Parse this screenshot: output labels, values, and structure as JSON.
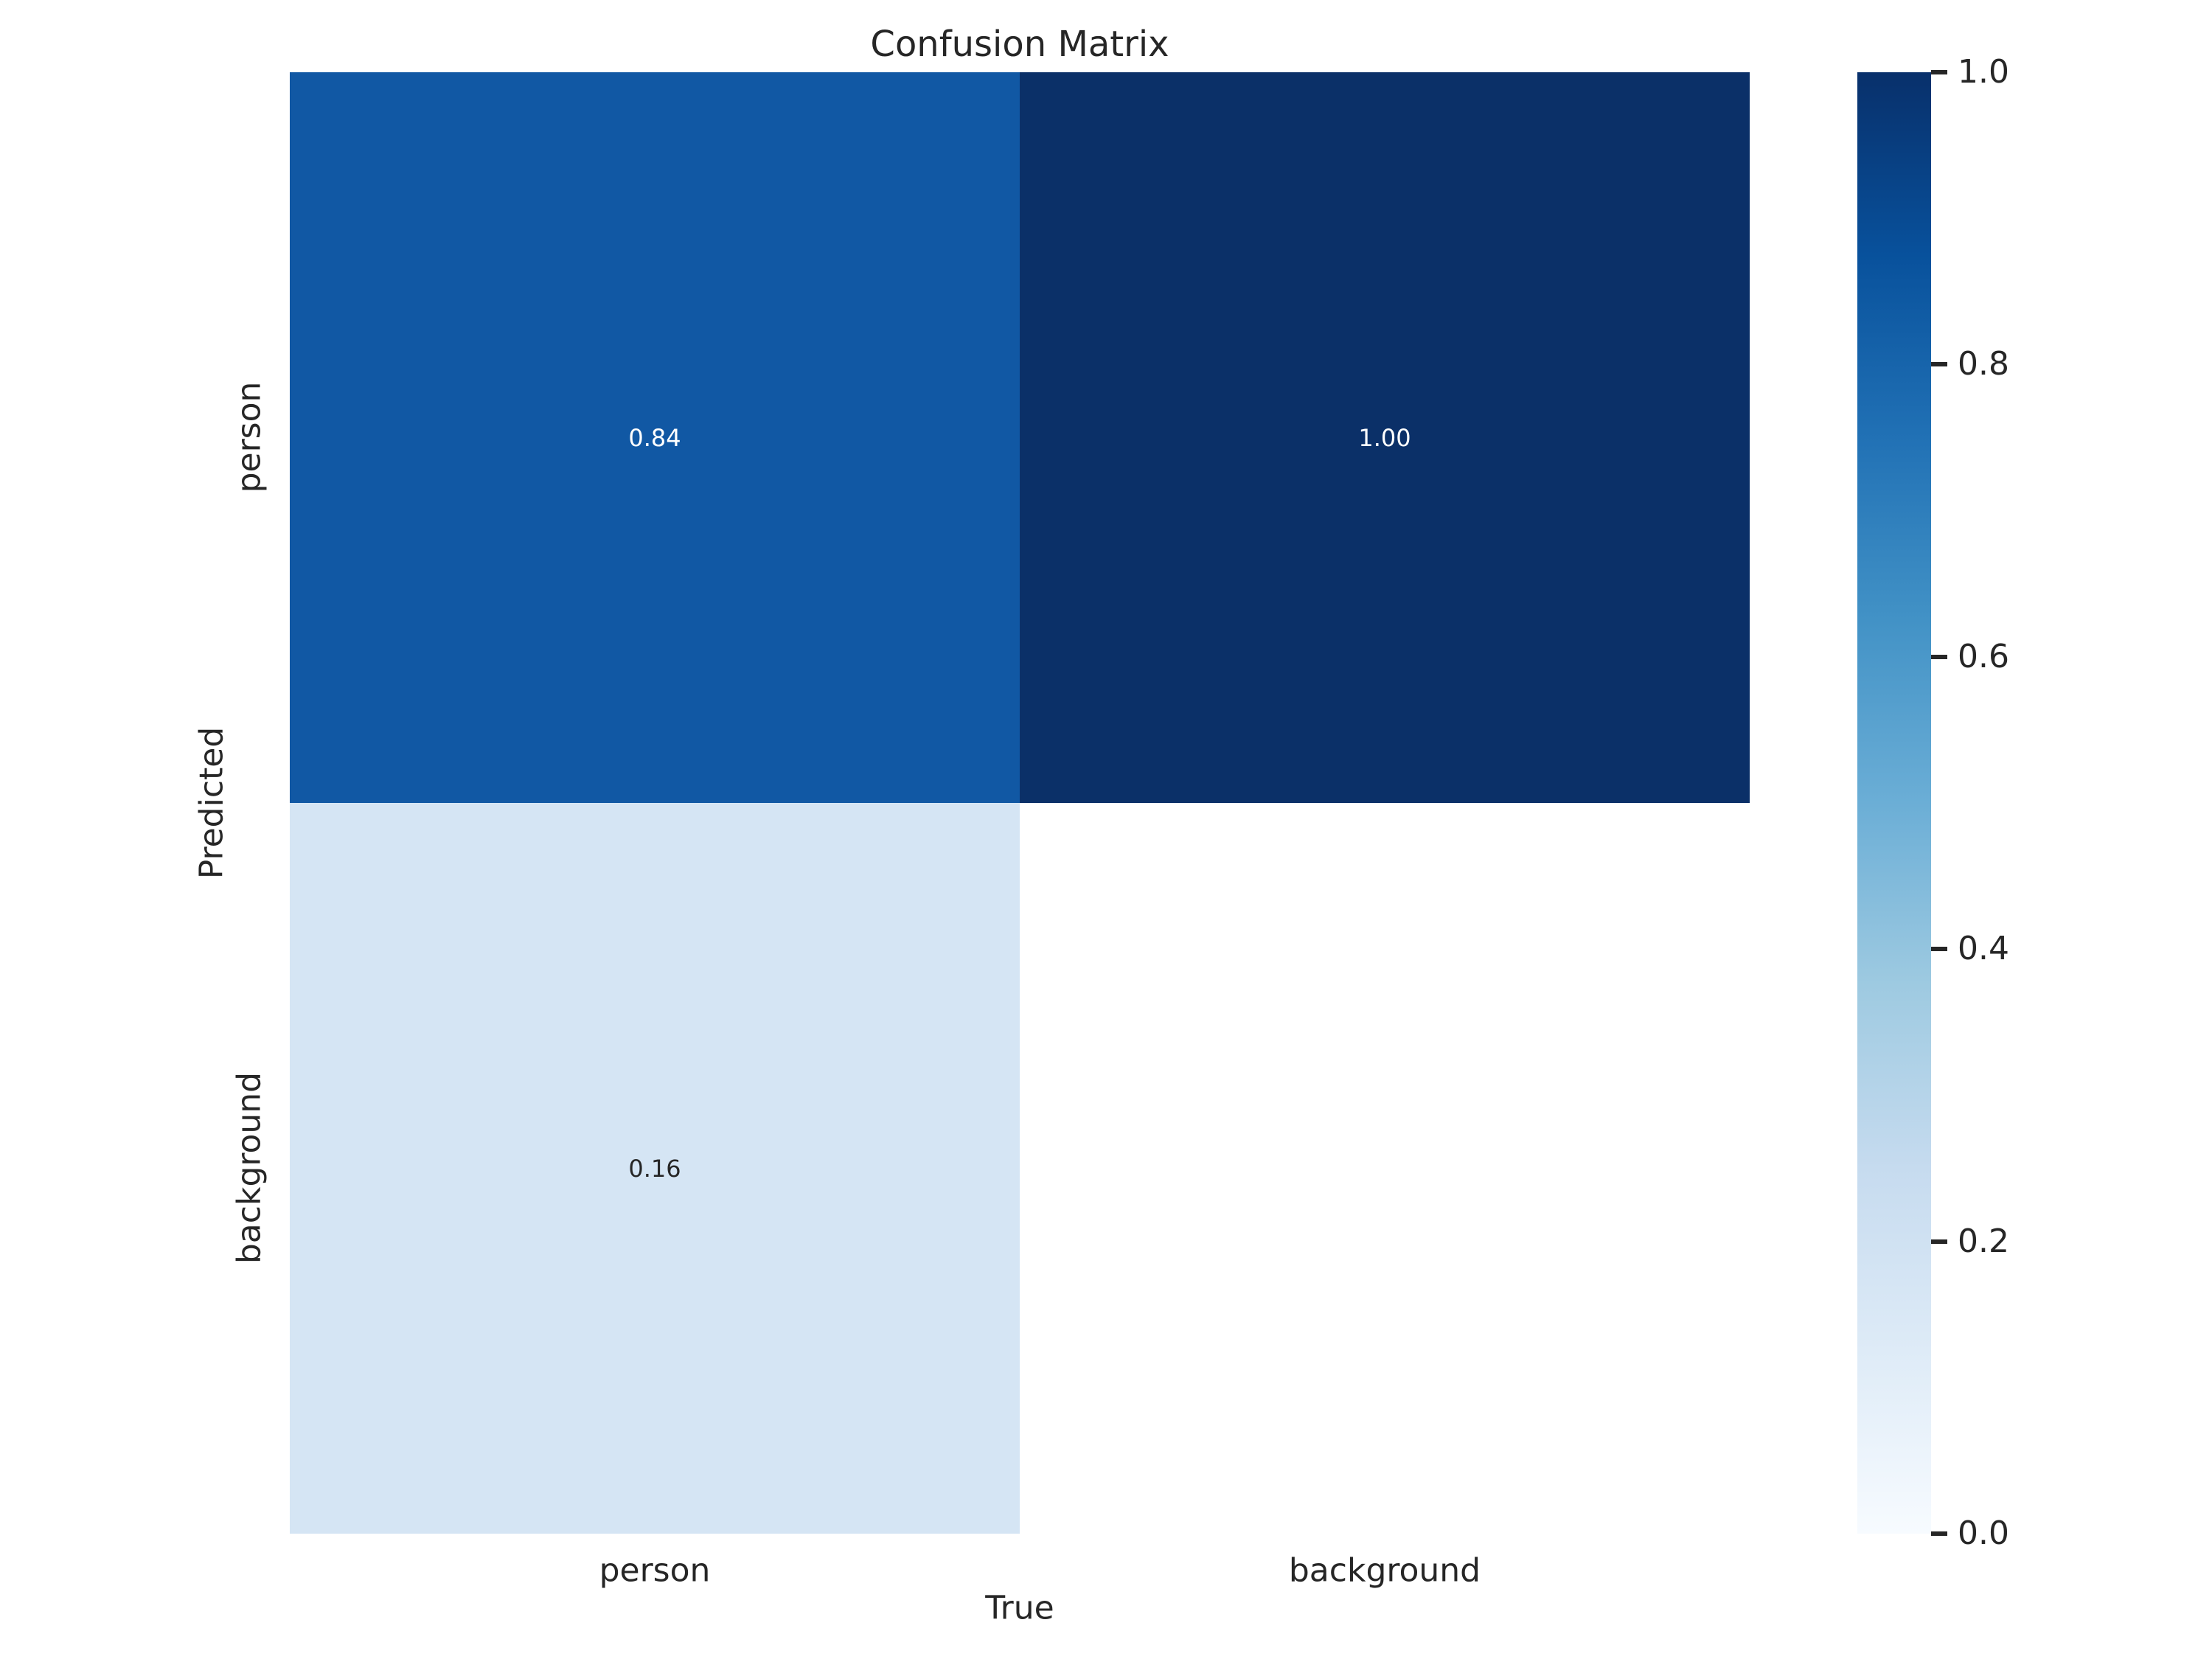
{
  "title": "Confusion Matrix",
  "axes": {
    "x_label": "True",
    "y_label": "Predicted",
    "x_tick_labels": [
      "person",
      "background"
    ],
    "y_tick_labels": [
      "person",
      "background"
    ]
  },
  "cells": [
    {
      "row": "person",
      "col": "person",
      "value": 0.84,
      "label": "0.84",
      "bg": "#1158a4",
      "fg": "#ffffff"
    },
    {
      "row": "person",
      "col": "background",
      "value": 1.0,
      "label": "1.00",
      "bg": "#0b3068",
      "fg": "#ffffff"
    },
    {
      "row": "background",
      "col": "person",
      "value": 0.16,
      "label": "0.16",
      "bg": "#d5e5f4",
      "fg": "#262626"
    },
    {
      "row": "background",
      "col": "background",
      "value": null,
      "label": "",
      "bg": "#ffffff",
      "fg": "#262626"
    }
  ],
  "colorbar": {
    "tick_labels": [
      "1.0",
      "0.8",
      "0.6",
      "0.4",
      "0.2",
      "0.0"
    ],
    "gradient_stops": [
      "#f7fbff",
      "#deebf7",
      "#c6dbef",
      "#9ecae1",
      "#6baed6",
      "#4292c6",
      "#2171b5",
      "#08519c",
      "#08306b"
    ]
  },
  "colors": {
    "text": "#262626",
    "figure_background": "#ffffff",
    "annotation_light": "#ffffff"
  },
  "chart_data": {
    "type": "heatmap",
    "title": "Confusion Matrix",
    "xlabel": "True",
    "ylabel": "Predicted",
    "x_categories": [
      "person",
      "background"
    ],
    "y_categories": [
      "person",
      "background"
    ],
    "values": [
      [
        0.84,
        1.0
      ],
      [
        0.16,
        null
      ]
    ],
    "annotations": [
      [
        "0.84",
        "1.00"
      ],
      [
        "0.16",
        ""
      ]
    ],
    "vmin": 0.0,
    "vmax": 1.0,
    "colormap": "Blues",
    "colorbar_ticks": [
      0.0,
      0.2,
      0.4,
      0.6,
      0.8,
      1.0
    ],
    "colorbar_position": "right",
    "grid": false,
    "legend_position": "none"
  }
}
